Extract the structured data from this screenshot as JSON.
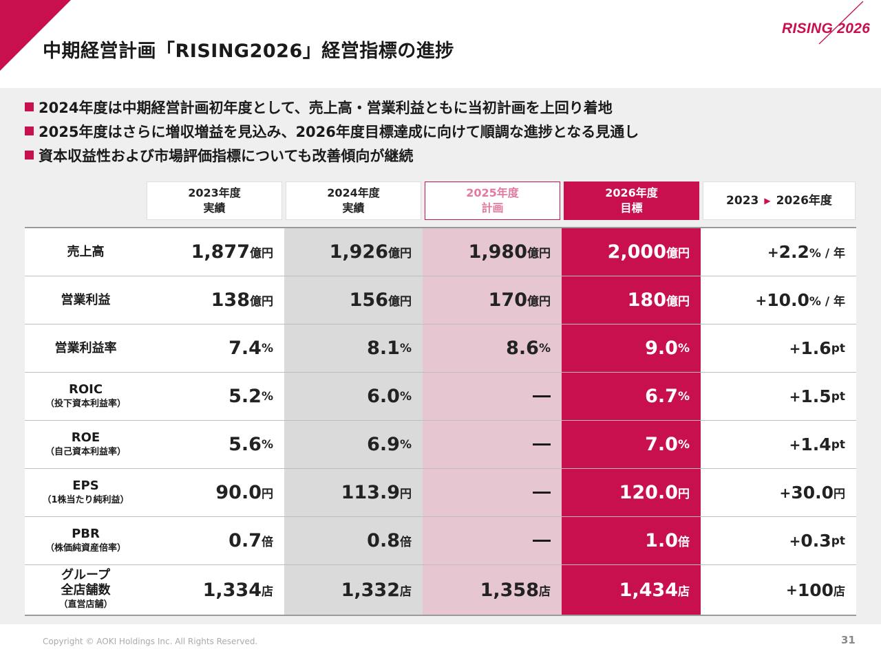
{
  "title": "中期経営計画「RISING2026」経営指標の進捗",
  "brand": "RISING 2026",
  "colors": {
    "accent": "#c8104f",
    "plan_fill": "#e6c7d1",
    "actual_fill": "#dadada",
    "background": "#efefef"
  },
  "bullets": [
    "2024年度は中期経営計画初年度として、売上高・営業利益ともに当初計画を上回り着地",
    "2025年度はさらに増収増益を見込み、2026年度目標達成に向けて順調な進捗となる見通し",
    "資本収益性および市場評価指標についても改善傾向が継続"
  ],
  "headers": {
    "y2023": {
      "line1": "2023年度",
      "line2": "実績"
    },
    "y2024": {
      "line1": "2024年度",
      "line2": "実績"
    },
    "y2025": {
      "line1": "2025年度",
      "line2": "計画"
    },
    "y2026": {
      "line1": "2026年度",
      "line2": "目標"
    },
    "growth": {
      "from": "2023",
      "arrow": "▶",
      "to": "2026年度"
    }
  },
  "rows": [
    {
      "label": "売上高",
      "sub": "",
      "v2023": "1,877",
      "u2023": "億円",
      "v2024": "1,926",
      "u2024": "億円",
      "v2025": "1,980",
      "u2025": "億円",
      "v2026": "2,000",
      "u2026": "億円",
      "gv": "2.2",
      "gu": "% / 年"
    },
    {
      "label": "営業利益",
      "sub": "",
      "v2023": "138",
      "u2023": "億円",
      "v2024": "156",
      "u2024": "億円",
      "v2025": "170",
      "u2025": "億円",
      "v2026": "180",
      "u2026": "億円",
      "gv": "10.0",
      "gu": "% / 年"
    },
    {
      "label": "営業利益率",
      "sub": "",
      "v2023": "7.4",
      "u2023": "%",
      "v2024": "8.1",
      "u2024": "%",
      "v2025": "8.6",
      "u2025": "%",
      "v2026": "9.0",
      "u2026": "%",
      "gv": "1.6",
      "gu": "pt"
    },
    {
      "label": "ROIC",
      "sub": "（投下資本利益率）",
      "v2023": "5.2",
      "u2023": "%",
      "v2024": "6.0",
      "u2024": "%",
      "v2025": "",
      "u2025": "",
      "v2026": "6.7",
      "u2026": "%",
      "gv": "1.5",
      "gu": "pt"
    },
    {
      "label": "ROE",
      "sub": "（自己資本利益率）",
      "v2023": "5.6",
      "u2023": "%",
      "v2024": "6.9",
      "u2024": "%",
      "v2025": "",
      "u2025": "",
      "v2026": "7.0",
      "u2026": "%",
      "gv": "1.4",
      "gu": "pt"
    },
    {
      "label": "EPS",
      "sub": "（1株当たり純利益）",
      "v2023": "90.0",
      "u2023": "円",
      "v2024": "113.9",
      "u2024": "円",
      "v2025": "",
      "u2025": "",
      "v2026": "120.0",
      "u2026": "円",
      "gv": "30.0",
      "gu": "円"
    },
    {
      "label": "PBR",
      "sub": "（株価純資産倍率）",
      "v2023": "0.7",
      "u2023": "倍",
      "v2024": "0.8",
      "u2024": "倍",
      "v2025": "",
      "u2025": "",
      "v2026": "1.0",
      "u2026": "倍",
      "gv": "0.3",
      "gu": "pt"
    },
    {
      "label": "グループ",
      "label2": "全店舗数",
      "sub": "（直営店舗）",
      "v2023": "1,334",
      "u2023": "店",
      "v2024": "1,332",
      "u2024": "店",
      "v2025": "1,358",
      "u2025": "店",
      "v2026": "1,434",
      "u2026": "店",
      "gv": "100",
      "gu": "店"
    }
  ],
  "footer": "Copyright © AOKI Holdings Inc. All Rights Reserved.",
  "page_number": "31"
}
